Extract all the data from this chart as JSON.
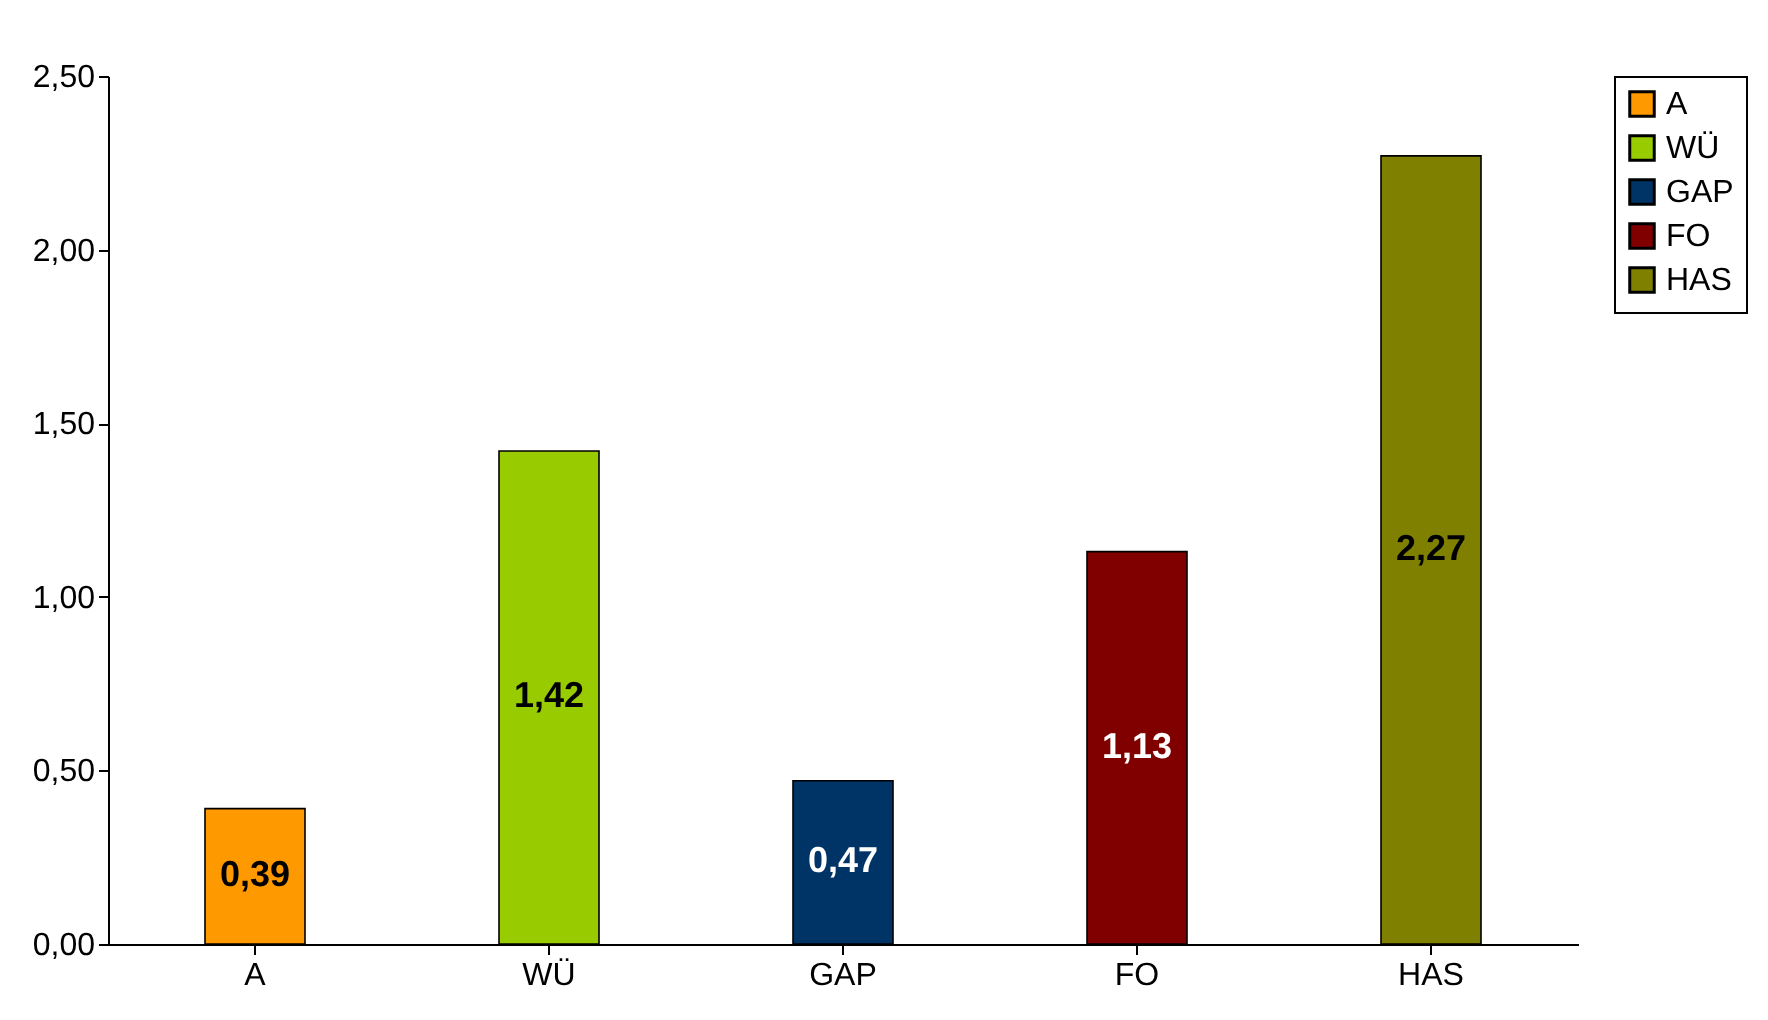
{
  "chart_data": {
    "type": "bar",
    "categories": [
      "A",
      "WÜ",
      "GAP",
      "FO",
      "HAS"
    ],
    "series": [
      {
        "name": "A",
        "color": "#ff9900",
        "values": [
          0.39,
          null,
          null,
          null,
          null
        ],
        "value_labels": [
          "0,39",
          null,
          null,
          null,
          null
        ]
      },
      {
        "name": "WÜ",
        "color": "#99cc00",
        "values": [
          null,
          1.42,
          null,
          null,
          null
        ],
        "value_labels": [
          null,
          "1,42",
          null,
          null,
          null
        ]
      },
      {
        "name": "GAP",
        "color": "#003366",
        "values": [
          null,
          null,
          0.47,
          null,
          null
        ],
        "value_labels": [
          null,
          null,
          "0,47",
          null,
          null
        ]
      },
      {
        "name": "FO",
        "color": "#800000",
        "values": [
          null,
          null,
          null,
          1.13,
          null
        ],
        "value_labels": [
          null,
          null,
          null,
          "1,13",
          null
        ]
      },
      {
        "name": "HAS",
        "color": "#808000",
        "values": [
          null,
          null,
          null,
          null,
          2.27
        ],
        "value_labels": [
          null,
          null,
          null,
          null,
          "2,27"
        ]
      }
    ],
    "ylim": [
      0,
      2.5
    ],
    "yticks": [
      {
        "value": 0,
        "label": "0,00"
      },
      {
        "value": 0.5,
        "label": "0,50"
      },
      {
        "value": 1,
        "label": "1,00"
      },
      {
        "value": 1.5,
        "label": "1,50"
      },
      {
        "value": 2,
        "label": "2,00"
      },
      {
        "value": 2.5,
        "label": "2,50"
      }
    ],
    "grid": false,
    "legend": "right"
  }
}
